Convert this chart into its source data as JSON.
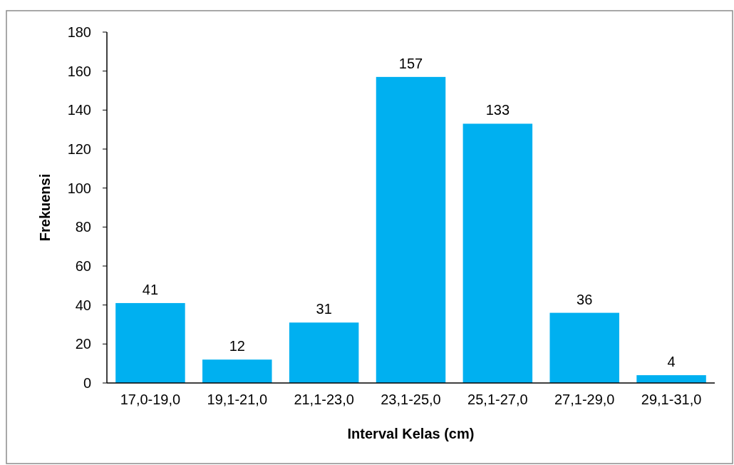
{
  "chart_data": {
    "type": "bar",
    "xlabel": "Interval Kelas (cm)",
    "ylabel": "Frekuensi",
    "categories": [
      "17,0-19,0",
      "19,1-21,0",
      "21,1-23,0",
      "23,1-25,0",
      "25,1-27,0",
      "27,1-29,0",
      "29,1-31,0"
    ],
    "values": [
      41,
      12,
      31,
      157,
      133,
      36,
      4
    ],
    "color": "#00b0f0",
    "ylim": [
      0,
      180
    ],
    "yticks": [
      0,
      20,
      40,
      60,
      80,
      100,
      120,
      140,
      160,
      180
    ],
    "grid": false,
    "data_labels": true
  }
}
